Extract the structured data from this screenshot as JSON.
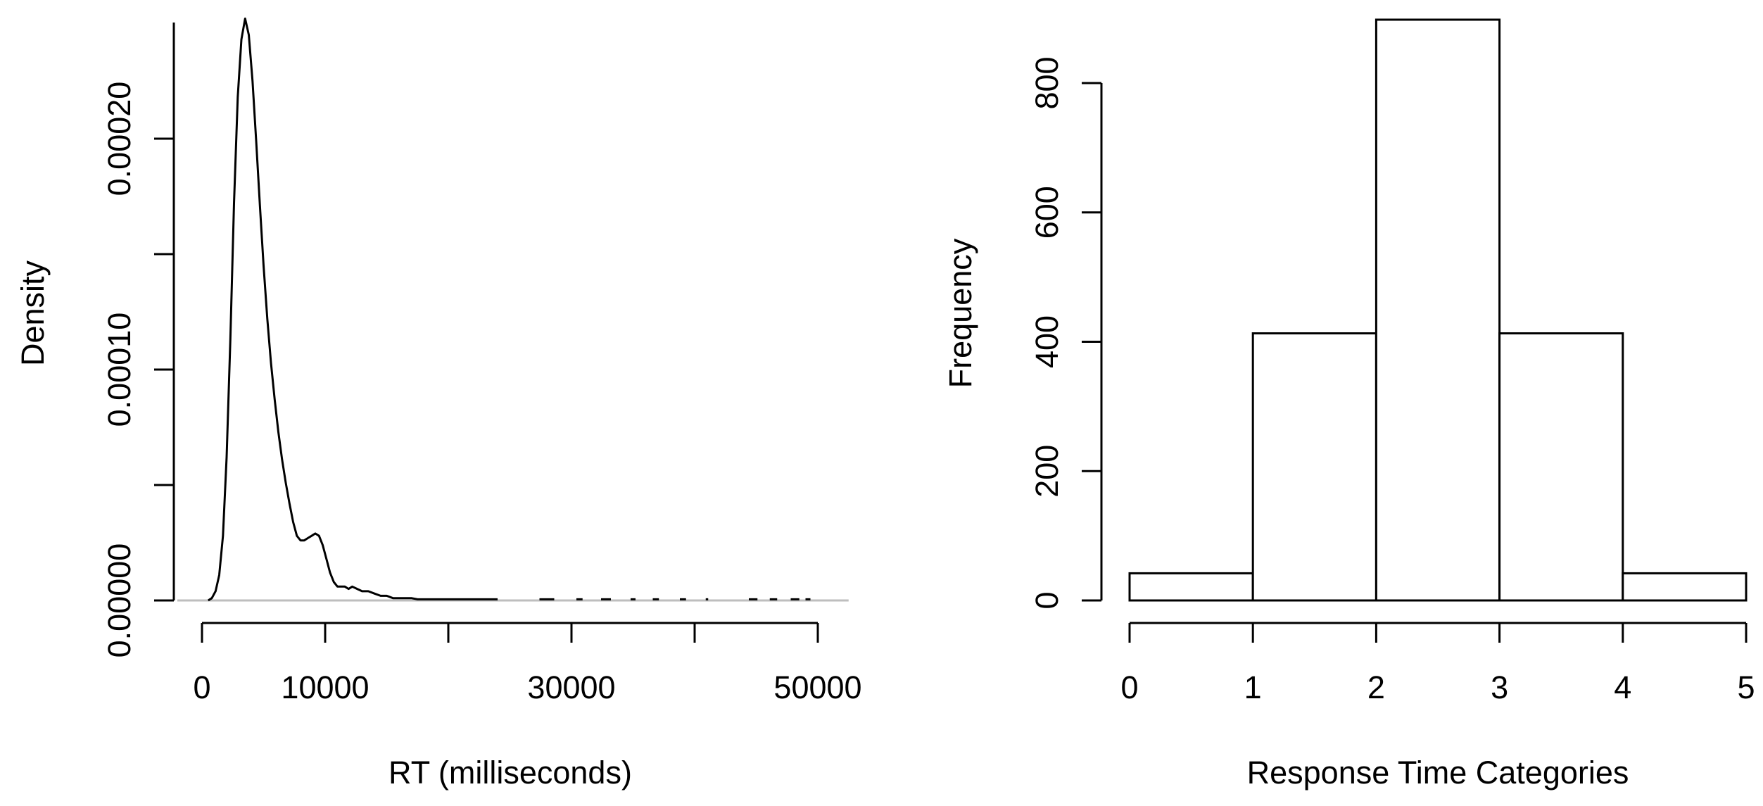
{
  "chart_data": [
    {
      "type": "line",
      "xlabel": "RT (milliseconds)",
      "ylabel": "Density",
      "xlim": [
        -2000,
        52500
      ],
      "ylim": [
        0,
        0.00025
      ],
      "x_ticks": [
        0,
        10000,
        20000,
        30000,
        40000,
        50000
      ],
      "x_tick_labels": [
        "0",
        "10000",
        "",
        "30000",
        "",
        "50000"
      ],
      "y_ticks": [
        0,
        5e-05,
        0.0001,
        0.00015,
        0.0002
      ],
      "y_tick_labels": [
        "0.00000",
        "",
        "0.00010",
        "",
        "0.00020"
      ],
      "baseline": 0,
      "series": [
        {
          "x": [
            500,
            800,
            1100,
            1400,
            1700,
            2000,
            2300,
            2600,
            2900,
            3200,
            3500,
            3800,
            4100,
            4400,
            4700,
            5000,
            5300,
            5600,
            5900,
            6200,
            6500,
            6800,
            7100,
            7400,
            7700,
            8000,
            8300,
            8600,
            8900,
            9200,
            9500,
            9800,
            10100,
            10400,
            10700,
            11000,
            11300,
            11600,
            11900,
            12200,
            12600,
            13000,
            13500,
            14000,
            14500,
            15000,
            15500,
            16000,
            16500,
            17000,
            17500,
            18000,
            19000,
            20000,
            21000,
            22000,
            23000,
            24000
          ],
          "y": [
            0,
            1e-06,
            4e-06,
            1.1e-05,
            2.8e-05,
            6.2e-05,
            0.000113,
            0.000172,
            0.000218,
            0.000243,
            0.000252,
            0.000245,
            0.000225,
            0.000199,
            0.000171,
            0.000145,
            0.000122,
            0.000103,
            8.7e-05,
            7.3e-05,
            6.1e-05,
            5.1e-05,
            4.2e-05,
            3.4e-05,
            2.8e-05,
            2.6e-05,
            2.6e-05,
            2.7e-05,
            2.8e-05,
            2.9e-05,
            2.8e-05,
            2.4e-05,
            1.8e-05,
            1.2e-05,
            8e-06,
            6e-06,
            6e-06,
            6e-06,
            5e-06,
            6e-06,
            5e-06,
            4e-06,
            4e-06,
            3e-06,
            2e-06,
            2e-06,
            1e-06,
            1e-06,
            1e-06,
            1e-06,
            5e-07,
            5e-07,
            5e-07,
            5e-07,
            5e-07,
            5e-07,
            5e-07,
            5e-07
          ]
        }
      ],
      "tail_segments": [
        [
          27400,
          28600
        ],
        [
          30400,
          30900
        ],
        [
          32400,
          33200
        ],
        [
          34800,
          35200
        ],
        [
          36600,
          37100
        ],
        [
          38800,
          39300
        ],
        [
          40900,
          41100
        ],
        [
          44400,
          45100
        ],
        [
          46100,
          46700
        ],
        [
          47800,
          48500
        ],
        [
          49000,
          49400
        ]
      ]
    },
    {
      "type": "bar",
      "xlabel": "Response Time Categories",
      "ylabel": "Frequency",
      "xlim": [
        0,
        5
      ],
      "ylim": [
        0,
        900
      ],
      "x_ticks": [
        0,
        1,
        2,
        3,
        4,
        5
      ],
      "x_tick_labels": [
        "0",
        "1",
        "2",
        "3",
        "4",
        "5"
      ],
      "y_ticks": [
        0,
        200,
        400,
        600,
        800
      ],
      "y_tick_labels": [
        "0",
        "200",
        "400",
        "600",
        "800"
      ],
      "bins": [
        {
          "from": 0,
          "to": 1,
          "value": 42
        },
        {
          "from": 1,
          "to": 2,
          "value": 413
        },
        {
          "from": 2,
          "to": 3,
          "value": 898
        },
        {
          "from": 3,
          "to": 4,
          "value": 413
        },
        {
          "from": 4,
          "to": 5,
          "value": 42
        }
      ]
    }
  ]
}
